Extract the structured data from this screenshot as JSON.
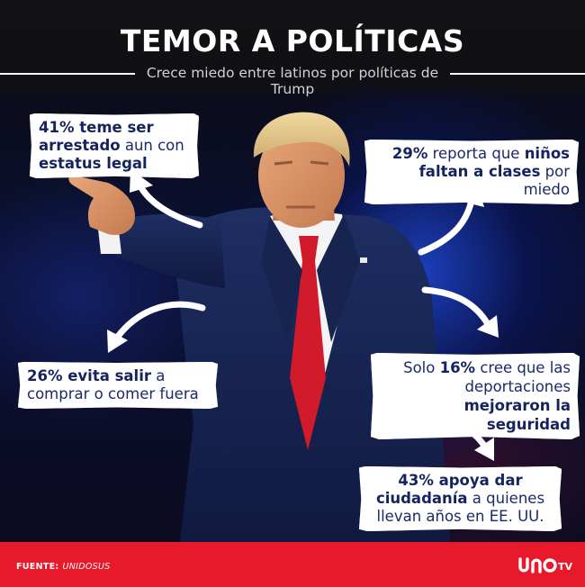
{
  "header": {
    "title": "TEMOR A POLÍTICAS",
    "subtitle": "Crece miedo entre latinos por políticas de Trump"
  },
  "callouts": {
    "c1": {
      "a": "41% teme ser",
      "b": "arrestado",
      "c": " aun con",
      "d": "estatus legal"
    },
    "c2": {
      "a": "29%",
      "b": " reporta que ",
      "c": "niños",
      "d": "faltan a clases",
      "e": " por miedo"
    },
    "c3": {
      "a": "26% evita salir",
      "b": " a",
      "c": "comprar o comer fuera"
    },
    "c4": {
      "a": "Solo ",
      "b": "16%",
      "c": " cree que las",
      "d": "deportaciones",
      "e": "mejoraron la seguridad"
    },
    "c5": {
      "a": "43% apoya dar",
      "b": "ciudadanía",
      "c": " a quienes",
      "d": "llevan años en EE. UU."
    }
  },
  "footer": {
    "source_label": "FUENTE:",
    "source_value": "UNIDOSUS",
    "logo": "uno-tv-logo"
  },
  "colors": {
    "accent_red": "#e8192b",
    "text_navy": "#1b2a6b",
    "header_bg": "#121214"
  }
}
